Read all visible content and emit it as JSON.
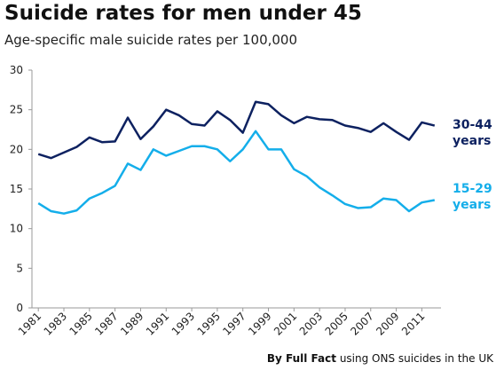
{
  "chart_data": {
    "type": "line",
    "title": "Suicide rates for men under 45",
    "subtitle": "Age-specific male suicide rates per 100,000",
    "source": {
      "bold": "By Full Fact",
      "text": "using ONS suicides in the UK"
    },
    "x": [
      1981,
      1982,
      1983,
      1984,
      1985,
      1986,
      1987,
      1988,
      1989,
      1990,
      1991,
      1992,
      1993,
      1994,
      1995,
      1996,
      1997,
      1998,
      1999,
      2000,
      2001,
      2002,
      2003,
      2004,
      2005,
      2006,
      2007,
      2008,
      2009,
      2010,
      2011,
      2012
    ],
    "series": [
      {
        "name": "30-44 years",
        "color": "#0d2160",
        "values": [
          19.4,
          18.9,
          19.6,
          20.3,
          21.5,
          20.9,
          21.0,
          24.0,
          21.3,
          22.9,
          25.0,
          24.3,
          23.2,
          23.0,
          24.8,
          23.7,
          22.1,
          26.0,
          25.7,
          24.3,
          23.3,
          24.1,
          23.8,
          23.7,
          23.0,
          22.7,
          22.2,
          23.3,
          22.2,
          21.2,
          23.4,
          23.0
        ]
      },
      {
        "name": "15-29 years",
        "color": "#14aeea",
        "values": [
          13.2,
          12.2,
          11.9,
          12.3,
          13.8,
          14.5,
          15.4,
          18.2,
          17.4,
          20.0,
          19.2,
          19.8,
          20.4,
          20.4,
          20.0,
          18.5,
          20.0,
          22.3,
          20.0,
          20.0,
          17.5,
          16.6,
          15.2,
          14.2,
          13.1,
          12.6,
          12.7,
          13.8,
          13.6,
          12.2,
          13.3,
          13.6
        ]
      }
    ],
    "xlim": [
      1980.5,
      2012.5
    ],
    "xticks": [
      1981,
      1983,
      1985,
      1987,
      1989,
      1991,
      1993,
      1995,
      1997,
      1999,
      2001,
      2003,
      2005,
      2007,
      2009,
      2011
    ],
    "ylim": [
      0,
      30
    ],
    "yticks": [
      0,
      5,
      10,
      15,
      20,
      25,
      30
    ],
    "grid": false
  }
}
